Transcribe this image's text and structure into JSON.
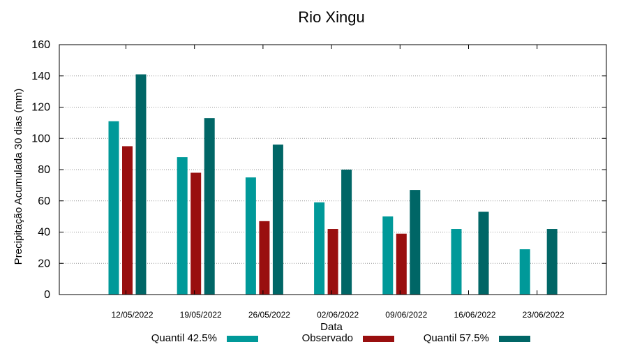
{
  "chart_data": {
    "type": "bar",
    "title": "Rio Xingu",
    "xlabel": "Data",
    "ylabel": "Precipitação Acumulada 30 dias (mm)",
    "ylim": [
      0,
      160
    ],
    "yticks": [
      0,
      20,
      40,
      60,
      80,
      100,
      120,
      140,
      160
    ],
    "grid": true,
    "legend_position": "bottom",
    "categories": [
      "12/05/2022",
      "19/05/2022",
      "26/05/2022",
      "02/06/2022",
      "09/06/2022",
      "16/06/2022",
      "23/06/2022"
    ],
    "series": [
      {
        "name": "Quantil 42.5%",
        "color": "#009999",
        "values": [
          111,
          88,
          75,
          59,
          50,
          42,
          29
        ]
      },
      {
        "name": "Observado",
        "color": "#990f0f",
        "values": [
          95,
          78,
          47,
          42,
          39,
          null,
          null
        ]
      },
      {
        "name": "Quantil 57.5%",
        "color": "#006666",
        "values": [
          141,
          113,
          96,
          80,
          67,
          53,
          42
        ]
      }
    ]
  }
}
